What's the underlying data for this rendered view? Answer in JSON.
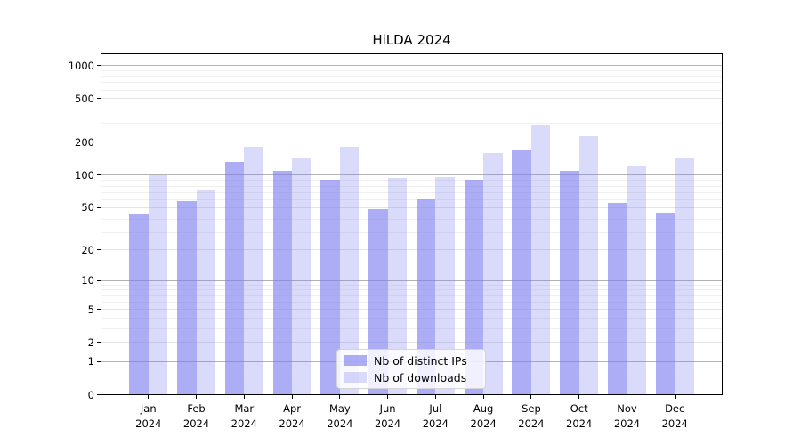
{
  "chart_data": {
    "type": "bar",
    "title": "HiLDA 2024",
    "categories": [
      "Jan",
      "Feb",
      "Mar",
      "Apr",
      "May",
      "Jun",
      "Jul",
      "Aug",
      "Sep",
      "Oct",
      "Nov",
      "Dec"
    ],
    "x_year_suffix": "2024",
    "series": [
      {
        "name": "Nb of distinct IPs",
        "color": "#7a7af0",
        "alpha": 0.62,
        "values": [
          44,
          57,
          131,
          110,
          90,
          48,
          60,
          90,
          167,
          110,
          55,
          45
        ]
      },
      {
        "name": "Nb of downloads",
        "color": "#7a7af0",
        "alpha": 0.28,
        "values": [
          100,
          73,
          181,
          141,
          181,
          93,
          95,
          160,
          285,
          226,
          120,
          145
        ]
      }
    ],
    "y_scale": "log1p",
    "y_ticks": [
      1000,
      500,
      200,
      100,
      50,
      20,
      10,
      5,
      2,
      1,
      0
    ],
    "y_tick_labels": [
      "1000",
      "500",
      "200",
      "100",
      "50",
      "20",
      "10",
      "5",
      "2",
      "1",
      "0"
    ],
    "y_major_grid_values": [
      1,
      10,
      100,
      1000
    ],
    "y_mid_grid_values": [
      2,
      5,
      20,
      50,
      200,
      500
    ],
    "y_minor_grid_values": [
      3,
      4,
      6,
      7,
      8,
      9,
      29,
      39,
      59,
      69,
      79,
      89,
      299,
      399,
      599,
      699,
      799,
      899
    ],
    "ylim": [
      0,
      1294
    ],
    "grid": true,
    "legend_position": "lower center",
    "grid_colors": {
      "strong": "#b3b3b3",
      "mid": "#e4e4e4",
      "faint": "#f0f0f0"
    }
  }
}
